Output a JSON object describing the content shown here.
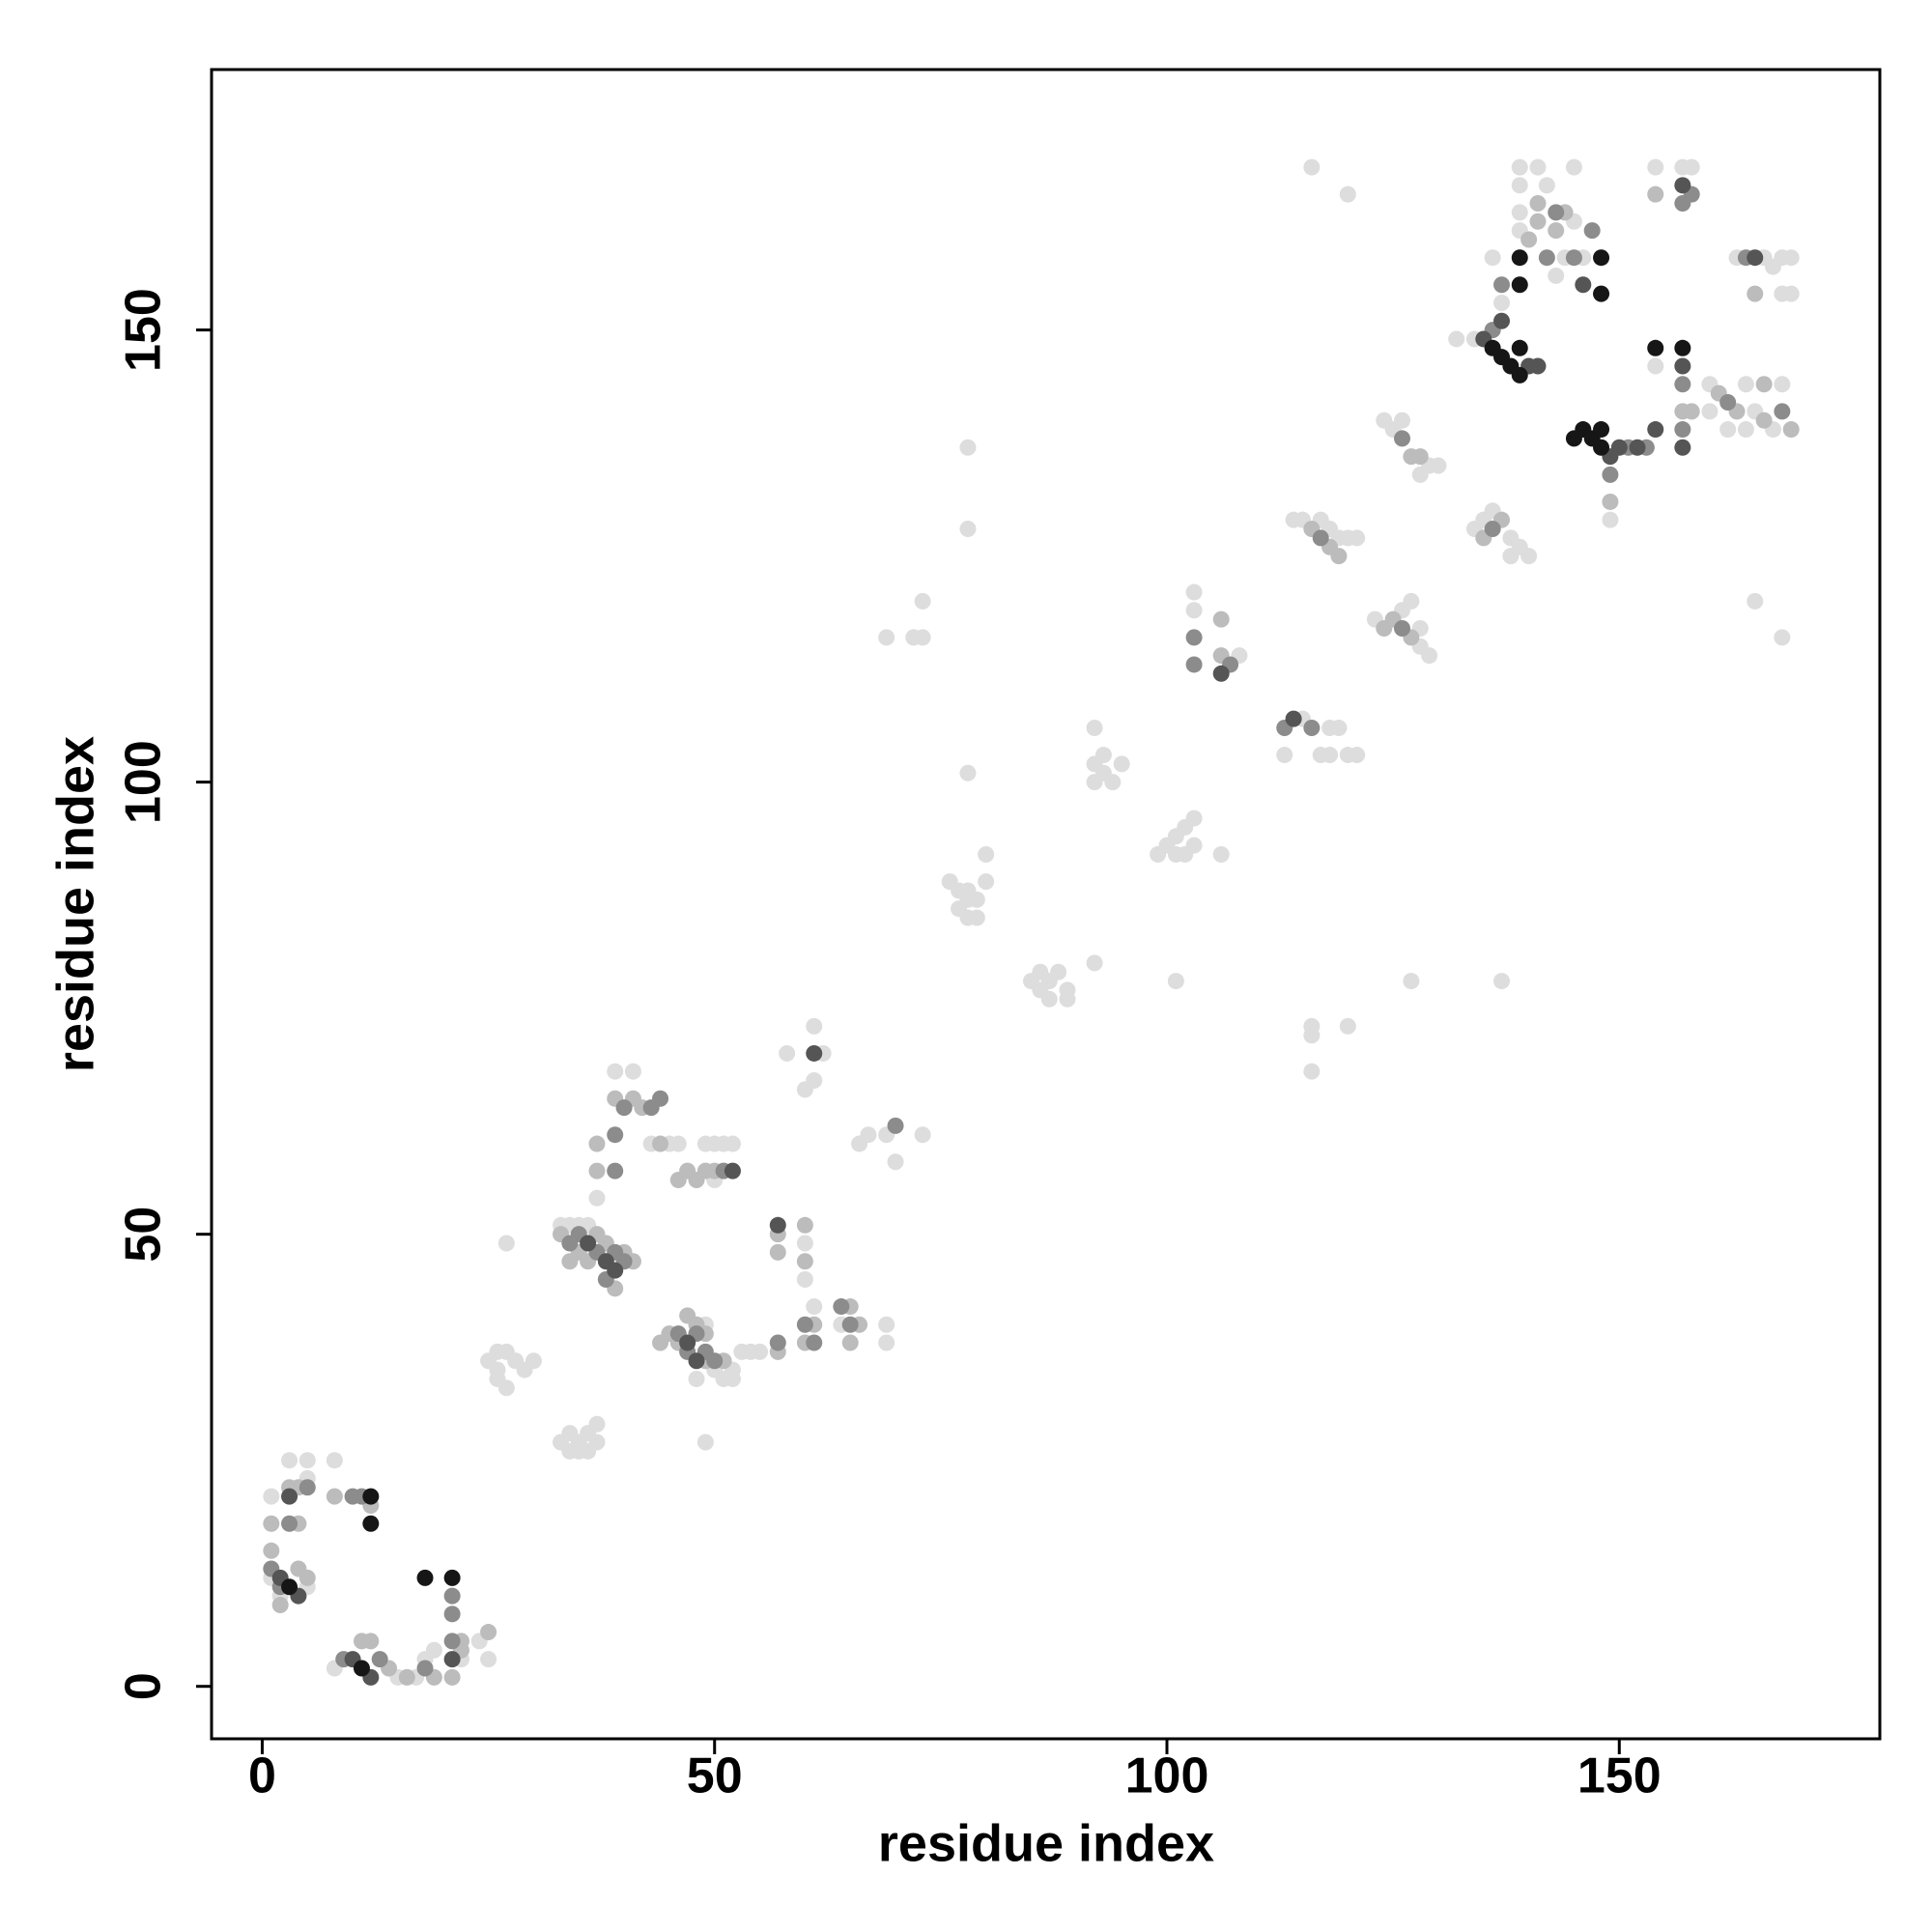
{
  "chart_data": {
    "type": "scatter",
    "xlabel": "residue index",
    "ylabel": "residue index",
    "xlim": [
      -5.6,
      178.8
    ],
    "ylim": [
      -5.8,
      178.8
    ],
    "xticks": [
      0,
      50,
      100,
      150
    ],
    "yticks": [
      0,
      50,
      100,
      150
    ],
    "grid": false,
    "series": [
      {
        "color": "#dddddd",
        "x": [
          1,
          1,
          2,
          3,
          5,
          5,
          8,
          5,
          8,
          15,
          17,
          18,
          19,
          22,
          24,
          25,
          25,
          26,
          26,
          27,
          27,
          28,
          29,
          30,
          26,
          27,
          33,
          34,
          35,
          36,
          37,
          34,
          35,
          36,
          37,
          33,
          34,
          35,
          36,
          37,
          39,
          41,
          43,
          45,
          46,
          49,
          50,
          51,
          52,
          50,
          50,
          51,
          52,
          52,
          48,
          49,
          53,
          54,
          55,
          49,
          60,
          60,
          61,
          64,
          69,
          69,
          58,
          60,
          61,
          61,
          62,
          66,
          67,
          69,
          70,
          73,
          76,
          77,
          77,
          78,
          78,
          79,
          79,
          80,
          80,
          78,
          78,
          78,
          78,
          69,
          72,
          73,
          73,
          85,
          86,
          86,
          87,
          87,
          88,
          89,
          89,
          92,
          92,
          92,
          93,
          93,
          94,
          95,
          92,
          99,
          100,
          101,
          102,
          103,
          101,
          102,
          103,
          106,
          101,
          103,
          103,
          108,
          113,
          115,
          117,
          118,
          118,
          119,
          120,
          121,
          116,
          116,
          116,
          120,
          116,
          120,
          114,
          115,
          120,
          121,
          117,
          118,
          119,
          123,
          126,
          127,
          128,
          129,
          128,
          124,
          125,
          129,
          126,
          128,
          130,
          127,
          137,
          134,
          136,
          138,
          138,
          139,
          140,
          135,
          132,
          134,
          137,
          136,
          139,
          139,
          139,
          139,
          141,
          142,
          145,
          145,
          144,
          143,
          146,
          149,
          154,
          157,
          158,
          154,
          160,
          160,
          162,
          164,
          164,
          165,
          167,
          168,
          163,
          166,
          167,
          168,
          169,
          169,
          168,
          165,
          168
        ],
        "values": [
          21,
          12,
          10,
          25,
          25,
          23,
          25,
          11,
          2,
          1,
          1,
          3,
          4,
          3,
          5,
          3,
          36,
          34,
          35,
          33,
          37,
          36,
          35,
          36,
          37,
          49,
          27,
          26,
          27,
          28,
          29,
          28,
          26,
          26,
          27,
          51,
          51,
          51,
          51,
          54,
          68,
          68,
          60,
          60,
          60,
          60,
          60,
          60,
          60,
          56,
          35,
          34,
          34,
          35,
          34,
          27,
          37,
          37,
          37,
          40,
          49,
          45,
          42,
          40,
          38,
          40,
          70,
          66,
          67,
          73,
          70,
          60,
          61,
          61,
          58,
          61,
          89,
          88,
          86,
          87,
          85,
          85,
          87,
          89,
          92,
          88,
          101,
          128,
          137,
          116,
          116,
          116,
          120,
          78,
          79,
          77,
          78,
          76,
          79,
          77,
          76,
          80,
          100,
          102,
          103,
          101,
          100,
          102,
          106,
          92,
          93,
          94,
          95,
          96,
          92,
          92,
          93,
          92,
          78,
          119,
          121,
          114,
          103,
          107,
          103,
          103,
          106,
          106,
          103,
          103,
          68,
          72,
          73,
          73,
          168,
          165,
          129,
          129,
          127,
          127,
          129,
          128,
          127,
          118,
          119,
          120,
          115,
          114,
          117,
          140,
          139,
          135,
          140,
          134,
          135,
          78,
          78,
          128,
          130,
          127,
          125,
          126,
          125,
          129,
          149,
          149,
          153,
          158,
          168,
          166,
          163,
          161,
          168,
          166,
          162,
          168,
          158,
          156,
          158,
          129,
          146,
          168,
          168,
          168,
          144,
          141,
          139,
          144,
          139,
          141,
          139,
          144,
          158,
          158,
          157,
          158,
          158,
          154,
          154,
          120,
          116
        ]
      },
      {
        "color": "#bcbcbc",
        "x": [
          1,
          1,
          4,
          4,
          5,
          8,
          3,
          4,
          2,
          12,
          11,
          12,
          14,
          16,
          19,
          21,
          22,
          22,
          25,
          33,
          34,
          35,
          36,
          37,
          38,
          40,
          41,
          39,
          37,
          37,
          39,
          41,
          42,
          44,
          47,
          49,
          50,
          46,
          48,
          57,
          57,
          57,
          60,
          60,
          60,
          61,
          65,
          65,
          66,
          44,
          45,
          46,
          49,
          51,
          47,
          48,
          49,
          106,
          106,
          116,
          118,
          119,
          124,
          125,
          127,
          127,
          128,
          135,
          137,
          140,
          141,
          141,
          143,
          144,
          149,
          157,
          158,
          161,
          163,
          166,
          166,
          169,
          165,
          154
        ],
        "values": [
          15,
          18,
          22,
          18,
          12,
          21,
          22,
          13,
          9,
          20,
          5,
          5,
          2,
          1,
          1,
          1,
          5,
          4,
          6,
          50,
          47,
          48,
          47,
          50,
          49,
          48,
          47,
          44,
          60,
          57,
          65,
          65,
          64,
          60,
          57,
          57,
          57,
          56,
          56,
          50,
          48,
          37,
          51,
          47,
          38,
          40,
          38,
          42,
          40,
          38,
          39,
          38,
          36,
          36,
          41,
          40,
          39,
          114,
          118,
          128,
          126,
          125,
          117,
          118,
          116,
          136,
          136,
          127,
          129,
          160,
          162,
          164,
          161,
          163,
          131,
          141,
          141,
          143,
          141,
          140,
          144,
          139,
          154,
          165
        ]
      },
      {
        "color": "#8c8c8c",
        "x": [
          1,
          2,
          3,
          5,
          11,
          10,
          21,
          21,
          9,
          13,
          18,
          21,
          34,
          35,
          37,
          39,
          40,
          38,
          39,
          39,
          40,
          43,
          44,
          51,
          57,
          60,
          61,
          64,
          65,
          46,
          47,
          49,
          50,
          48,
          70,
          103,
          107,
          113,
          116,
          117,
          126,
          126,
          136,
          137,
          136,
          145,
          143,
          147,
          142,
          151,
          149,
          157,
          157,
          162,
          164,
          168,
          153,
          157,
          158,
          103
        ],
        "values": [
          13,
          11,
          18,
          22,
          21,
          21,
          10,
          8,
          3,
          3,
          2,
          5,
          49,
          50,
          48,
          48,
          47,
          45,
          61,
          57,
          64,
          64,
          65,
          57,
          38,
          40,
          38,
          42,
          40,
          39,
          37,
          37,
          36,
          39,
          62,
          116,
          113,
          106,
          106,
          127,
          117,
          138,
          128,
          155,
          150,
          158,
          163,
          161,
          158,
          137,
          134,
          139,
          144,
          142,
          158,
          141,
          137,
          164,
          165,
          113
        ]
      },
      {
        "color": "#555555",
        "x": [
          3,
          4,
          2,
          10,
          12,
          21,
          57,
          52,
          61,
          36,
          38,
          39,
          47,
          48,
          106,
          114,
          137,
          135,
          140,
          141,
          146,
          149,
          150,
          154,
          157,
          157,
          165,
          157,
          152
        ],
        "values": [
          21,
          10,
          12,
          3,
          1,
          3,
          51,
          57,
          70,
          49,
          47,
          46,
          38,
          36,
          112,
          107,
          151,
          149,
          146,
          146,
          155,
          136,
          137,
          139,
          146,
          137,
          158,
          166,
          137
        ]
      },
      {
        "color": "#161616",
        "x": [
          12,
          12,
          18,
          21,
          11,
          3,
          139,
          139,
          136,
          137,
          138,
          139,
          148,
          148,
          145,
          146,
          147,
          148,
          148,
          154,
          157,
          139
        ],
        "values": [
          21,
          18,
          12,
          12,
          2,
          11,
          158,
          155,
          148,
          147,
          146,
          145,
          158,
          154,
          138,
          139,
          138,
          137,
          139,
          148,
          148,
          148
        ]
      }
    ]
  }
}
